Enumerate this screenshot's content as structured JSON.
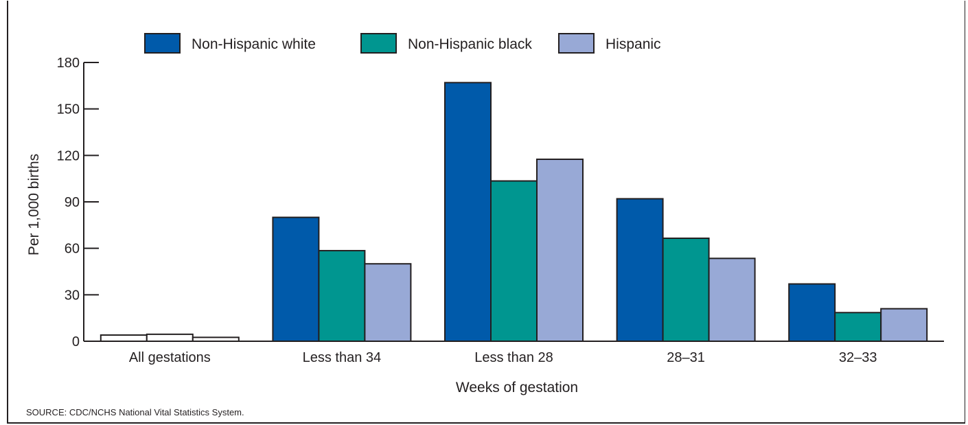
{
  "chart_data": {
    "type": "bar",
    "xlabel": "Weeks of gestation",
    "ylabel": "Per 1,000 births",
    "ylim": [
      0,
      180
    ],
    "yticks": [
      0,
      30,
      60,
      90,
      120,
      150,
      180
    ],
    "categories": [
      "All gestations",
      "Less than 34",
      "Less than 28",
      "28–31",
      "32–33"
    ],
    "series": [
      {
        "name": "Non-Hispanic white",
        "color": "#005aaa",
        "values": [
          4,
          80,
          167,
          92,
          37
        ]
      },
      {
        "name": "Non-Hispanic black",
        "color": "#009690",
        "values": [
          4.5,
          58.5,
          103.5,
          66.5,
          18.5
        ]
      },
      {
        "name": "Hispanic",
        "color": "#98a9d6",
        "values": [
          2.5,
          50,
          117.5,
          53.5,
          21
        ]
      }
    ],
    "first_category_unfilled": true,
    "legend_position": "top",
    "grid": false
  },
  "source_note": "SOURCE: CDC/NCHS National Vital Statistics System."
}
